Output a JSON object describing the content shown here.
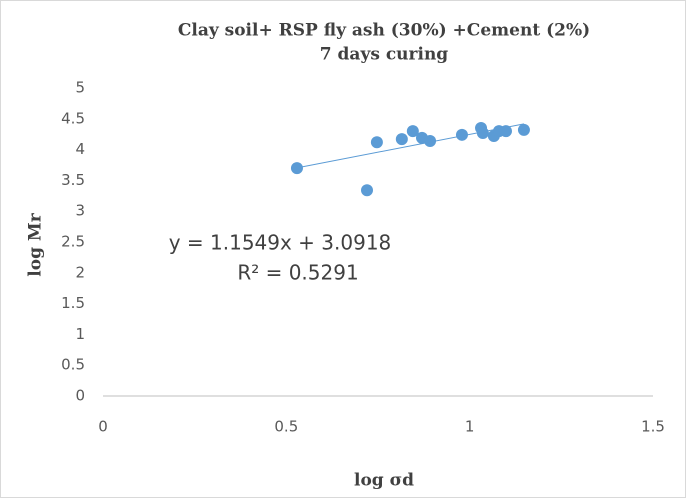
{
  "chart_data": {
    "type": "scatter",
    "title": [
      "Clay soil+ RSP fly ash (30%) +Cement (2%)",
      "7 days curing"
    ],
    "x_label": "log σd",
    "y_label": "log Mr",
    "series": [
      {
        "name": "log Mr",
        "color": "#5b9bd5",
        "x": [
          0.529,
          0.72,
          0.747,
          0.815,
          0.845,
          0.87,
          0.892,
          0.979,
          1.031,
          1.036,
          1.066,
          1.08,
          1.099,
          1.148
        ],
        "values": [
          3.7,
          3.34,
          4.12,
          4.17,
          4.3,
          4.19,
          4.14,
          4.24,
          4.35,
          4.27,
          4.22,
          4.3,
          4.3,
          4.32
        ]
      }
    ],
    "trendline": {
      "slope": 1.1549,
      "intercept": 3.0918,
      "equation": "y = 1.1549x + 3.0918",
      "r_squared": "R² = 0.5291"
    },
    "xlim": [
      0,
      1.5
    ],
    "xticks": [
      0,
      0.5,
      1,
      1.5
    ],
    "ylim": [
      0,
      5
    ],
    "yticks": [
      0,
      0.5,
      1,
      1.5,
      2,
      2.5,
      3,
      3.5,
      4,
      4.5,
      5
    ],
    "grid": false
  }
}
